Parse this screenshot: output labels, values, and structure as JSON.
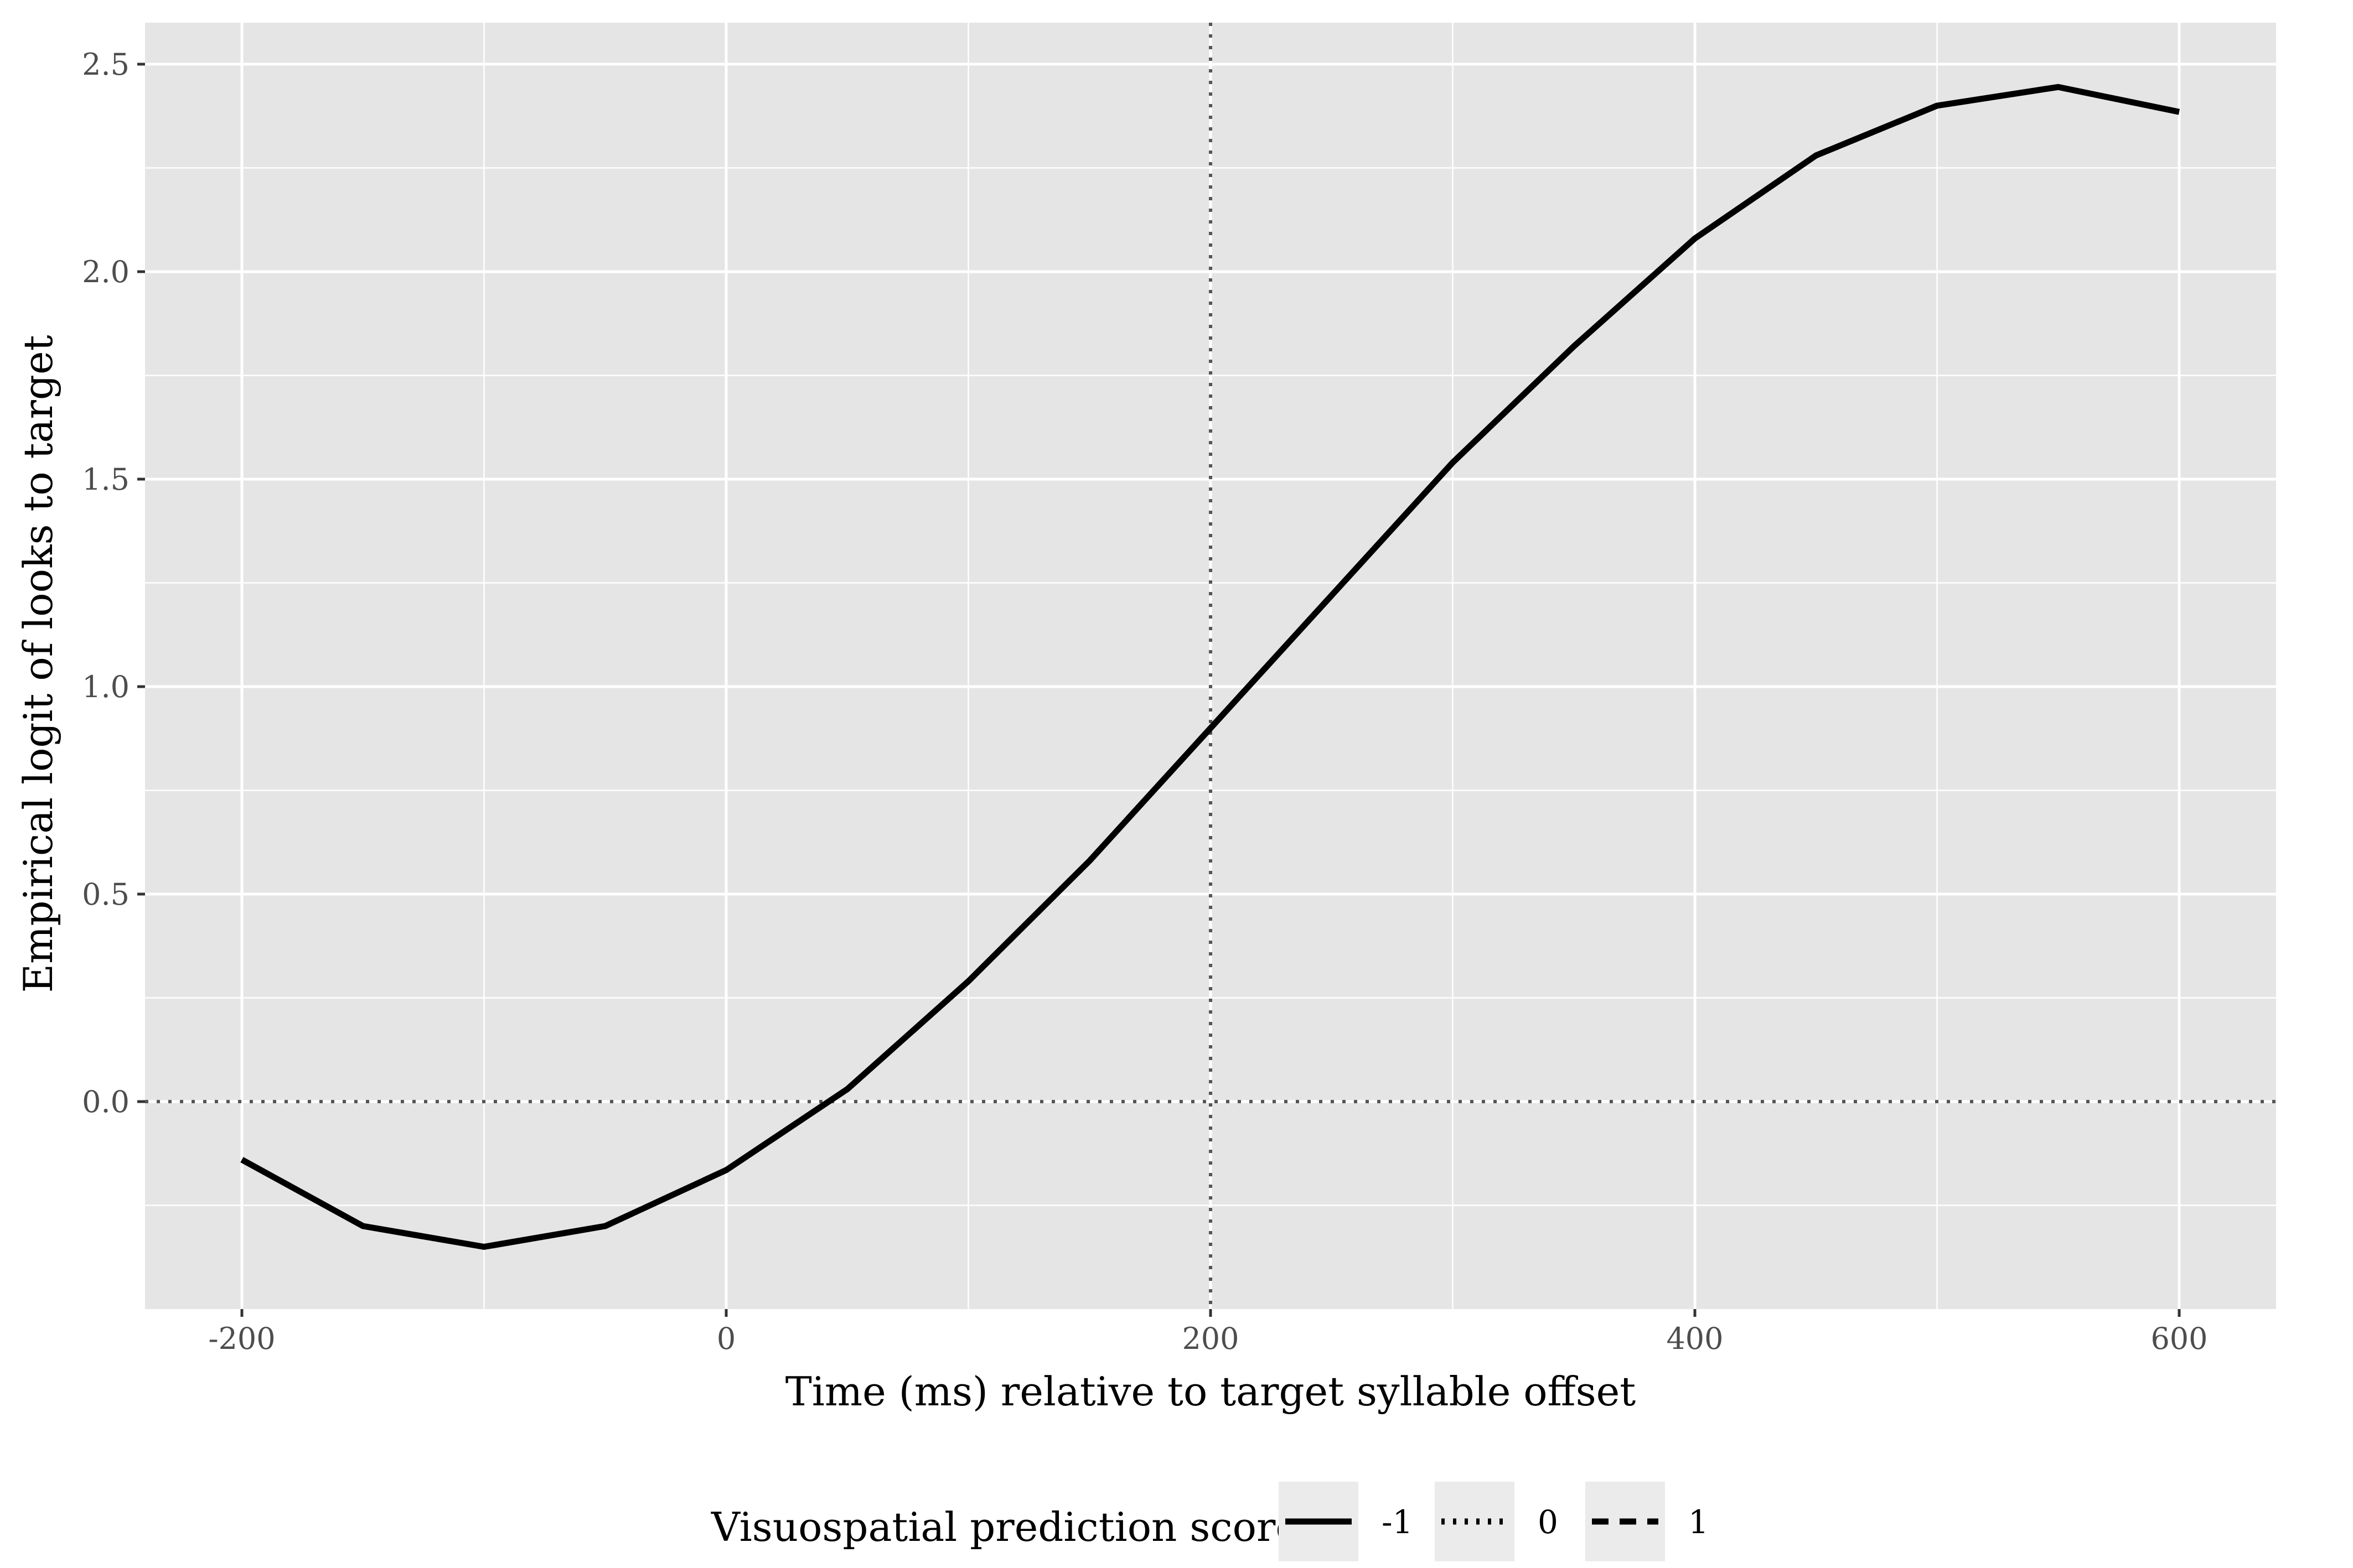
{
  "chart_data": {
    "type": "line",
    "xlabel": "Time (ms) relative to target syllable offset",
    "ylabel": "Empirical logit of looks to target",
    "xlim": [
      -240,
      640
    ],
    "ylim": [
      -0.5,
      2.6
    ],
    "x_ticks": [
      -200,
      0,
      200,
      400,
      600
    ],
    "x_tick_labels": [
      "-200",
      "0",
      "200",
      "400",
      "600"
    ],
    "y_ticks": [
      0.0,
      0.5,
      1.0,
      1.5,
      2.0,
      2.5
    ],
    "y_tick_labels": [
      "0.0",
      "0.5",
      "1.0",
      "1.5",
      "2.0",
      "2.5"
    ],
    "grid": true,
    "legend_position": "bottom",
    "reference_lines": [
      {
        "axis": "x",
        "value": 200,
        "style": "dotted"
      },
      {
        "axis": "y",
        "value": 0,
        "style": "dotted"
      }
    ],
    "legend": {
      "title": "Visuospatial prediction score",
      "entries": [
        {
          "label": "-1",
          "linetype": "solid"
        },
        {
          "label": "0",
          "linetype": "dotted"
        },
        {
          "label": "1",
          "linetype": "dashed"
        }
      ]
    },
    "series": [
      {
        "name": "-1",
        "linetype": "solid",
        "x": [
          -200,
          -150,
          -100,
          -50,
          0,
          50,
          100,
          150,
          200,
          250,
          300,
          350,
          400,
          450,
          500,
          550,
          600
        ],
        "y": [
          -0.14,
          -0.3,
          -0.35,
          -0.3,
          -0.165,
          0.03,
          0.29,
          0.58,
          0.9,
          1.22,
          1.54,
          1.82,
          2.08,
          2.28,
          2.4,
          2.445,
          2.385
        ]
      }
    ]
  },
  "colors": {
    "panel_background": "#e5e5e5",
    "grid_major": "#ffffff",
    "line": "#000000",
    "reference_line": "#555555",
    "tick_text": "#4d4d4d",
    "legend_key_background": "#ebebeb"
  }
}
